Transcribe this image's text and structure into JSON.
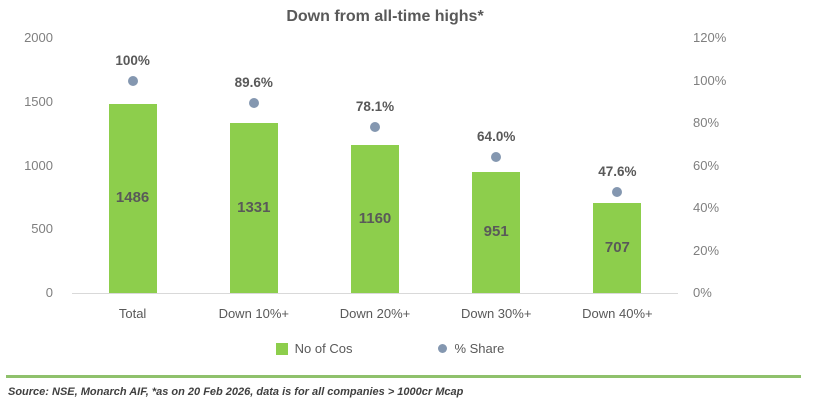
{
  "chart_data": {
    "type": "bar",
    "title": "Down from all-time highs*",
    "categories": [
      "Total",
      "Down 10%+",
      "Down 20%+",
      "Down 30%+",
      "Down 40%+"
    ],
    "series": [
      {
        "name": "No of Cos",
        "type": "bar",
        "axis": "left",
        "values": [
          1486,
          1331,
          1160,
          951,
          707
        ],
        "data_labels": [
          "1486",
          "1331",
          "1160",
          "951",
          "707"
        ],
        "color": "#8dce4c"
      },
      {
        "name": "% Share",
        "type": "scatter",
        "axis": "right",
        "values": [
          100,
          89.6,
          78.1,
          64.0,
          47.6
        ],
        "data_labels": [
          "100%",
          "89.6%",
          "78.1%",
          "64.0%",
          "47.6%"
        ],
        "color": "#8497b0"
      }
    ],
    "left_axis": {
      "min": 0,
      "max": 2000,
      "ticks": [
        "2000",
        "1500",
        "1000",
        "500",
        "0"
      ]
    },
    "right_axis": {
      "min": 0,
      "max": 120,
      "ticks": [
        "120%",
        "100%",
        "80%",
        "60%",
        "40%",
        "20%",
        "0%"
      ]
    },
    "grid": "off",
    "legend": {
      "position": "bottom",
      "entries": [
        {
          "label": "No of Cos",
          "marker": "square",
          "color": "#8dce4c"
        },
        {
          "label": "% Share",
          "marker": "circle",
          "color": "#8497b0"
        }
      ]
    }
  },
  "footer": {
    "source_text": "Source: NSE, Monarch AIF, *as on 20 Feb 2026, data is for all companies > 1000cr Mcap",
    "divider_color": "#8fc16c"
  },
  "colors": {
    "bar": "#8dce4c",
    "marker": "#8497b0",
    "title_text": "#595959",
    "axis_text": "#7f7f7f",
    "axis_line": "#d9d9d9",
    "background": "#ffffff"
  }
}
